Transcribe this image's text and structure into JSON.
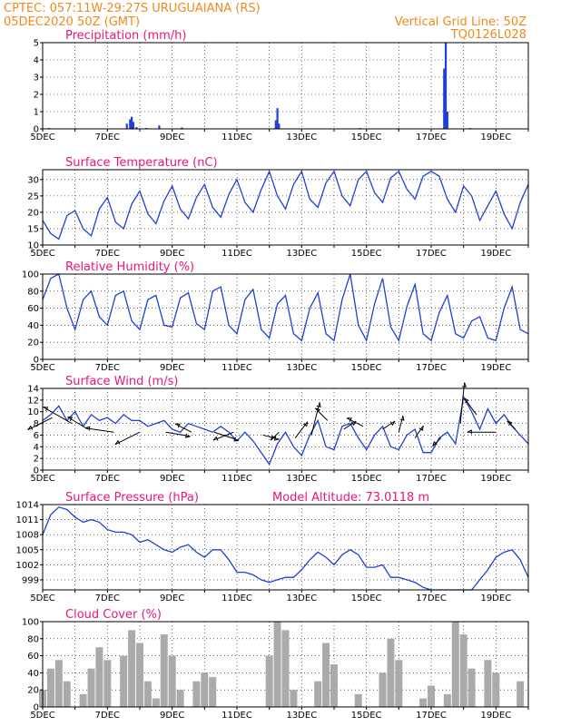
{
  "header": {
    "line1_left": "CPTEC:   057:11W-29:27S   URUGUAIANA (RS)",
    "line2_left": "05DEC2020 50Z (GMT)",
    "line1_right": "Vertical Grid Line: 50Z",
    "line2_right": "TQ0126L028"
  },
  "colors": {
    "header": "#ee8a1c",
    "title": "#e8157a",
    "series": "#1f3fd6",
    "cloud": "#aaaaaa",
    "arrow": "#000000"
  },
  "x_tick_labels": [
    "5DEC",
    "7DEC",
    "9DEC",
    "11DEC",
    "13DEC",
    "15DEC",
    "17DEC",
    "19DEC"
  ],
  "chart_data": [
    {
      "id": "precip",
      "type": "bar",
      "title": "Precipitation (mm/h)",
      "xlabel": "",
      "ylabel": "",
      "x_range_days": [
        5,
        20
      ],
      "ylim": [
        0,
        5
      ],
      "yticks": [
        0,
        1,
        2,
        3,
        4,
        5
      ],
      "grid": "dotted",
      "series": [
        {
          "x": [
            5.2,
            5.5,
            6.0,
            7.6,
            7.7,
            7.75,
            7.8,
            7.9,
            8.2,
            8.6,
            9.3,
            11.0,
            12.2,
            12.25,
            12.3,
            14.8,
            16.0,
            17.4,
            17.45,
            17.5,
            18.2
          ],
          "values": [
            0.05,
            0.03,
            0.04,
            0.3,
            0.55,
            0.7,
            0.4,
            0.1,
            0.05,
            0.2,
            0.08,
            0.03,
            0.5,
            1.2,
            0.3,
            0.05,
            0.04,
            3.5,
            5.0,
            1.0,
            0.05
          ]
        }
      ]
    },
    {
      "id": "temp",
      "type": "line",
      "title": "Surface Temperature (nC)",
      "xlabel": "",
      "ylabel": "",
      "x_range_days": [
        5,
        20
      ],
      "ylim": [
        10,
        33
      ],
      "yticks": [
        10,
        15,
        20,
        25,
        30
      ],
      "grid": "dotted",
      "series": [
        {
          "x": [
            5.0,
            5.25,
            5.5,
            5.75,
            6.0,
            6.25,
            6.5,
            6.75,
            7.0,
            7.25,
            7.5,
            7.75,
            8.0,
            8.25,
            8.5,
            8.75,
            9.0,
            9.25,
            9.5,
            9.75,
            10.0,
            10.25,
            10.5,
            10.75,
            11.0,
            11.25,
            11.5,
            11.75,
            12.0,
            12.25,
            12.5,
            12.75,
            13.0,
            13.25,
            13.5,
            13.75,
            14.0,
            14.25,
            14.5,
            14.75,
            15.0,
            15.25,
            15.5,
            15.75,
            16.0,
            16.25,
            16.5,
            16.75,
            17.0,
            17.25,
            17.5,
            17.75,
            18.0,
            18.25,
            18.5,
            18.75,
            19.0,
            19.25,
            19.5,
            19.75,
            20.0
          ],
          "values": [
            17.5,
            13.5,
            11.8,
            19.0,
            20.5,
            15.0,
            12.8,
            21.0,
            24.5,
            17.0,
            15.0,
            22.5,
            26.5,
            19.5,
            16.5,
            23.5,
            28.0,
            21.0,
            18.0,
            24.5,
            28.5,
            21.5,
            18.5,
            25.5,
            30.0,
            23.0,
            20.0,
            27.0,
            32.5,
            25.0,
            21.0,
            28.5,
            32.5,
            24.0,
            21.5,
            29.0,
            32.5,
            25.0,
            22.0,
            30.0,
            32.5,
            26.0,
            23.0,
            30.5,
            32.5,
            27.0,
            24.0,
            31.0,
            32.5,
            31.0,
            24.0,
            20.0,
            28.0,
            25.0,
            17.5,
            22.0,
            26.5,
            19.5,
            15.0,
            23.0,
            28.5
          ]
        }
      ]
    },
    {
      "id": "rh",
      "type": "line",
      "title": "Relative Humidity (%)",
      "xlabel": "",
      "ylabel": "",
      "x_range_days": [
        5,
        20
      ],
      "ylim": [
        0,
        100
      ],
      "yticks": [
        0,
        20,
        40,
        60,
        80,
        100
      ],
      "grid": "dotted",
      "series": [
        {
          "x": [
            5.0,
            5.25,
            5.5,
            5.75,
            6.0,
            6.25,
            6.5,
            6.75,
            7.0,
            7.25,
            7.5,
            7.75,
            8.0,
            8.25,
            8.5,
            8.75,
            9.0,
            9.25,
            9.5,
            9.75,
            10.0,
            10.25,
            10.5,
            10.75,
            11.0,
            11.25,
            11.5,
            11.75,
            12.0,
            12.25,
            12.5,
            12.75,
            13.0,
            13.25,
            13.5,
            13.75,
            14.0,
            14.25,
            14.5,
            14.75,
            15.0,
            15.25,
            15.5,
            15.75,
            16.0,
            16.25,
            16.5,
            16.75,
            17.0,
            17.25,
            17.5,
            17.75,
            18.0,
            18.25,
            18.5,
            18.75,
            19.0,
            19.25,
            19.5,
            19.75,
            20.0
          ],
          "values": [
            70,
            95,
            100,
            60,
            35,
            70,
            80,
            50,
            40,
            75,
            80,
            45,
            35,
            70,
            75,
            40,
            38,
            72,
            78,
            42,
            35,
            80,
            85,
            40,
            30,
            70,
            82,
            35,
            25,
            65,
            75,
            30,
            22,
            60,
            78,
            30,
            22,
            70,
            100,
            40,
            22,
            65,
            95,
            38,
            22,
            62,
            88,
            30,
            22,
            55,
            75,
            30,
            25,
            45,
            50,
            25,
            22,
            60,
            85,
            35,
            30
          ]
        }
      ]
    },
    {
      "id": "wind",
      "type": "line",
      "title": "Surface Wind (m/s)",
      "xlabel": "",
      "ylabel": "",
      "x_range_days": [
        5,
        20
      ],
      "ylim": [
        0,
        14
      ],
      "yticks": [
        0,
        2,
        4,
        6,
        8,
        10,
        12,
        14
      ],
      "grid": "dotted",
      "series": [
        {
          "x": [
            5.0,
            5.25,
            5.5,
            5.75,
            6.0,
            6.25,
            6.5,
            6.75,
            7.0,
            7.25,
            7.5,
            7.75,
            8.0,
            8.25,
            8.5,
            8.75,
            9.0,
            9.25,
            9.5,
            9.75,
            10.0,
            10.25,
            10.5,
            10.75,
            11.0,
            11.25,
            11.5,
            11.75,
            12.0,
            12.25,
            12.5,
            12.75,
            13.0,
            13.25,
            13.5,
            13.75,
            14.0,
            14.25,
            14.5,
            14.75,
            15.0,
            15.25,
            15.5,
            15.75,
            16.0,
            16.25,
            16.5,
            16.75,
            17.0,
            17.25,
            17.5,
            17.75,
            18.0,
            18.25,
            18.5,
            18.75,
            19.0,
            19.25,
            19.5,
            19.75,
            20.0
          ],
          "values": [
            8.5,
            9.5,
            11.0,
            8.5,
            10.0,
            7.5,
            9.5,
            8.5,
            9.0,
            8.0,
            9.5,
            8.5,
            8.5,
            7.5,
            8.0,
            8.5,
            7.0,
            6.5,
            8.0,
            7.5,
            7.0,
            6.5,
            7.5,
            6.5,
            5.0,
            6.5,
            5.0,
            3.0,
            1.0,
            4.5,
            6.5,
            4.0,
            2.5,
            6.0,
            8.5,
            4.0,
            3.5,
            7.5,
            8.0,
            5.5,
            3.5,
            6.0,
            7.5,
            4.0,
            3.5,
            6.0,
            7.0,
            3.0,
            3.0,
            5.5,
            6.5,
            4.5,
            12.5,
            10.0,
            7.0,
            10.5,
            8.0,
            9.5,
            7.5,
            6.0,
            4.5
          ]
        }
      ],
      "vectors": [
        {
          "x": 5.3,
          "y": 9.0,
          "u": -3.0,
          "v": -1.5
        },
        {
          "x": 5.9,
          "y": 8.0,
          "u": -3.5,
          "v": 2.0
        },
        {
          "x": 6.4,
          "y": 7.0,
          "u": -2.5,
          "v": 1.5
        },
        {
          "x": 7.2,
          "y": 6.5,
          "u": -3.5,
          "v": 0.5
        },
        {
          "x": 8.0,
          "y": 6.5,
          "u": -3.0,
          "v": -1.5
        },
        {
          "x": 8.8,
          "y": 6.5,
          "u": 3.0,
          "v": -0.5
        },
        {
          "x": 9.6,
          "y": 6.5,
          "u": -2.0,
          "v": 1.0
        },
        {
          "x": 10.3,
          "y": 6.5,
          "u": 3.0,
          "v": -1.0
        },
        {
          "x": 10.9,
          "y": 6.5,
          "u": -2.5,
          "v": -1.0
        },
        {
          "x": 11.8,
          "y": 6.0,
          "u": 2.0,
          "v": -0.5
        },
        {
          "x": 12.3,
          "y": 6.5,
          "u": -1.0,
          "v": -1.0
        },
        {
          "x": 12.8,
          "y": 5.5,
          "u": 1.5,
          "v": 2.0
        },
        {
          "x": 13.3,
          "y": 6.0,
          "u": 1.0,
          "v": 4.0
        },
        {
          "x": 13.8,
          "y": 8.5,
          "u": -1.5,
          "v": 1.5
        },
        {
          "x": 14.3,
          "y": 7.0,
          "u": 1.5,
          "v": 1.0
        },
        {
          "x": 14.9,
          "y": 7.5,
          "u": -2.0,
          "v": 1.0
        },
        {
          "x": 15.5,
          "y": 7.0,
          "u": 1.5,
          "v": 1.0
        },
        {
          "x": 16.0,
          "y": 6.5,
          "u": 0.5,
          "v": 2.0
        },
        {
          "x": 16.5,
          "y": 5.5,
          "u": 1.0,
          "v": 1.5
        },
        {
          "x": 17.3,
          "y": 5.5,
          "u": -1.0,
          "v": -1.0
        },
        {
          "x": 17.9,
          "y": 8.0,
          "u": 0.5,
          "v": 5.0
        },
        {
          "x": 18.4,
          "y": 9.5,
          "u": -1.5,
          "v": 2.0
        },
        {
          "x": 19.0,
          "y": 6.5,
          "u": -3.5,
          "v": 0.0
        },
        {
          "x": 19.6,
          "y": 7.0,
          "u": -1.0,
          "v": 1.0
        }
      ]
    },
    {
      "id": "pressure",
      "type": "line",
      "title": "Surface Pressure (hPa)",
      "annotation": "Model Altitude: 73.0118 m",
      "xlabel": "",
      "ylabel": "",
      "x_range_days": [
        5,
        20
      ],
      "ylim": [
        997,
        1014
      ],
      "yticks": [
        999,
        1002,
        1005,
        1008,
        1011,
        1014
      ],
      "grid": "dotted",
      "series": [
        {
          "x": [
            5.0,
            5.25,
            5.5,
            5.75,
            6.0,
            6.25,
            6.5,
            6.75,
            7.0,
            7.25,
            7.5,
            7.75,
            8.0,
            8.25,
            8.5,
            8.75,
            9.0,
            9.25,
            9.5,
            9.75,
            10.0,
            10.25,
            10.5,
            10.75,
            11.0,
            11.25,
            11.5,
            11.75,
            12.0,
            12.25,
            12.5,
            12.75,
            13.0,
            13.25,
            13.5,
            13.75,
            14.0,
            14.25,
            14.5,
            14.75,
            15.0,
            15.25,
            15.5,
            15.75,
            16.0,
            16.25,
            16.5,
            16.75,
            17.0,
            17.25,
            17.5,
            17.75,
            18.0,
            18.25,
            18.5,
            18.75,
            19.0,
            19.25,
            19.5,
            19.75,
            20.0
          ],
          "values": [
            1008,
            1012,
            1013.5,
            1013,
            1011.5,
            1010.5,
            1011,
            1010.5,
            1009,
            1008.5,
            1008.5,
            1008,
            1006.5,
            1007,
            1006,
            1005,
            1004.5,
            1005.5,
            1006,
            1004.5,
            1003.5,
            1005,
            1005,
            1003,
            1000.5,
            1000.5,
            1000,
            999,
            998.5,
            999,
            999.5,
            999.5,
            1001,
            1003,
            1004.5,
            1003.5,
            1002,
            1004,
            1005,
            1004,
            1001.5,
            1001.5,
            1002,
            999.5,
            999.5,
            999,
            998.5,
            997.5,
            997,
            997,
            997,
            997,
            997,
            997,
            999,
            1001,
            1003.5,
            1004.5,
            1005,
            1003,
            999.5
          ]
        }
      ]
    },
    {
      "id": "cloud",
      "type": "bar",
      "title": "Cloud Cover (%)",
      "xlabel": "",
      "ylabel": "",
      "x_range_days": [
        5,
        20
      ],
      "ylim": [
        0,
        100
      ],
      "yticks": [
        0,
        20,
        40,
        60,
        80,
        100
      ],
      "grid": "dotted",
      "series": [
        {
          "x": [
            5.0,
            5.25,
            5.5,
            5.75,
            6.0,
            6.25,
            6.5,
            6.75,
            7.0,
            7.25,
            7.5,
            7.75,
            8.0,
            8.25,
            8.5,
            8.75,
            9.0,
            9.25,
            9.5,
            9.75,
            10.0,
            10.25,
            10.5,
            10.75,
            11.0,
            11.25,
            11.5,
            11.75,
            12.0,
            12.25,
            12.5,
            12.75,
            13.0,
            13.25,
            13.5,
            13.75,
            14.0,
            14.25,
            14.5,
            14.75,
            15.0,
            15.25,
            15.5,
            15.75,
            16.0,
            16.25,
            16.5,
            16.75,
            17.0,
            17.25,
            17.5,
            17.75,
            18.0,
            18.25,
            18.5,
            18.75,
            19.0,
            19.25,
            19.5,
            19.75,
            20.0
          ],
          "values": [
            20,
            45,
            55,
            30,
            0,
            15,
            45,
            70,
            55,
            0,
            60,
            90,
            75,
            30,
            10,
            85,
            60,
            20,
            0,
            30,
            40,
            35,
            0,
            0,
            0,
            0,
            0,
            0,
            60,
            100,
            90,
            20,
            0,
            0,
            30,
            75,
            50,
            0,
            0,
            15,
            0,
            0,
            40,
            80,
            55,
            0,
            0,
            10,
            25,
            0,
            15,
            100,
            85,
            45,
            0,
            55,
            40,
            0,
            0,
            30,
            0
          ]
        }
      ]
    }
  ]
}
